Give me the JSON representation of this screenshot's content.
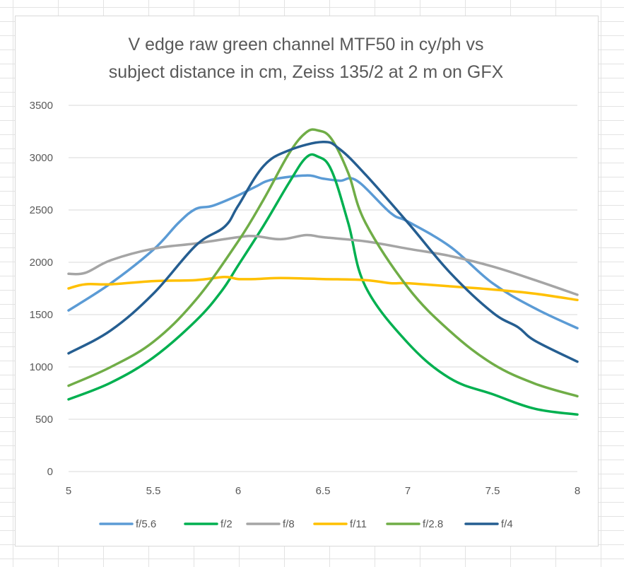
{
  "chart_data": {
    "type": "line",
    "title": [
      "V edge raw green channel MTF50 in cy/ph vs",
      "subject distance in cm, Zeiss 135/2 at 2 m on GFX"
    ],
    "xlabel": "",
    "ylabel": "",
    "xlim": [
      5,
      8
    ],
    "ylim": [
      0,
      3500
    ],
    "x_ticks": [
      "5",
      "5.5",
      "6",
      "6.5",
      "7",
      "7.5",
      "8"
    ],
    "y_ticks": [
      "0",
      "500",
      "1000",
      "1500",
      "2000",
      "2500",
      "3000",
      "3500"
    ],
    "grid": "horizontal",
    "legend_position": "bottom",
    "series": [
      {
        "name": "f/5.6",
        "color": "#5b9bd5",
        "x": [
          5,
          5.25,
          5.5,
          5.65,
          5.75,
          5.85,
          6,
          6.1,
          6.2,
          6.4,
          6.5,
          6.6,
          6.7,
          6.9,
          7,
          7.25,
          7.5,
          7.75,
          8
        ],
        "y": [
          1540,
          1800,
          2120,
          2380,
          2510,
          2540,
          2640,
          2720,
          2790,
          2830,
          2800,
          2780,
          2780,
          2470,
          2390,
          2150,
          1800,
          1560,
          1370
        ]
      },
      {
        "name": "f/2",
        "color": "#00b050",
        "x": [
          5,
          5.25,
          5.5,
          5.75,
          5.9,
          6,
          6.15,
          6.3,
          6.4,
          6.47,
          6.55,
          6.65,
          6.75,
          7,
          7.25,
          7.5,
          7.75,
          8
        ],
        "y": [
          690,
          850,
          1090,
          1440,
          1720,
          1970,
          2350,
          2760,
          3000,
          3010,
          2880,
          2370,
          1770,
          1230,
          890,
          740,
          600,
          545
        ]
      },
      {
        "name": "f/8",
        "color": "#a5a5a5",
        "x": [
          5,
          5.1,
          5.25,
          5.5,
          5.75,
          6,
          6.1,
          6.25,
          6.4,
          6.5,
          6.75,
          7,
          7.25,
          7.5,
          7.75,
          8
        ],
        "y": [
          1890,
          1900,
          2020,
          2130,
          2180,
          2240,
          2250,
          2220,
          2260,
          2240,
          2200,
          2130,
          2060,
          1960,
          1830,
          1690
        ]
      },
      {
        "name": "f/11",
        "color": "#ffc000",
        "x": [
          5,
          5.1,
          5.25,
          5.5,
          5.75,
          5.92,
          6,
          6.1,
          6.25,
          6.5,
          6.75,
          6.9,
          7,
          7.25,
          7.5,
          7.75,
          8
        ],
        "y": [
          1750,
          1790,
          1790,
          1820,
          1830,
          1860,
          1840,
          1840,
          1850,
          1840,
          1830,
          1800,
          1800,
          1770,
          1740,
          1700,
          1640
        ]
      },
      {
        "name": "f/2.8",
        "color": "#70ad47",
        "x": [
          5,
          5.25,
          5.5,
          5.75,
          6,
          6.15,
          6.3,
          6.4,
          6.47,
          6.55,
          6.65,
          6.75,
          7,
          7.25,
          7.5,
          7.75,
          8
        ],
        "y": [
          820,
          1000,
          1240,
          1640,
          2200,
          2600,
          3040,
          3240,
          3260,
          3180,
          2850,
          2380,
          1760,
          1340,
          1030,
          840,
          720
        ]
      },
      {
        "name": "f/4",
        "color": "#255e91",
        "x": [
          5,
          5.25,
          5.5,
          5.75,
          5.92,
          6,
          6.15,
          6.3,
          6.5,
          6.6,
          6.75,
          7,
          7.25,
          7.5,
          7.65,
          7.75,
          8
        ],
        "y": [
          1130,
          1350,
          1700,
          2160,
          2340,
          2540,
          2920,
          3070,
          3150,
          3080,
          2840,
          2380,
          1900,
          1520,
          1380,
          1250,
          1050
        ]
      }
    ]
  }
}
